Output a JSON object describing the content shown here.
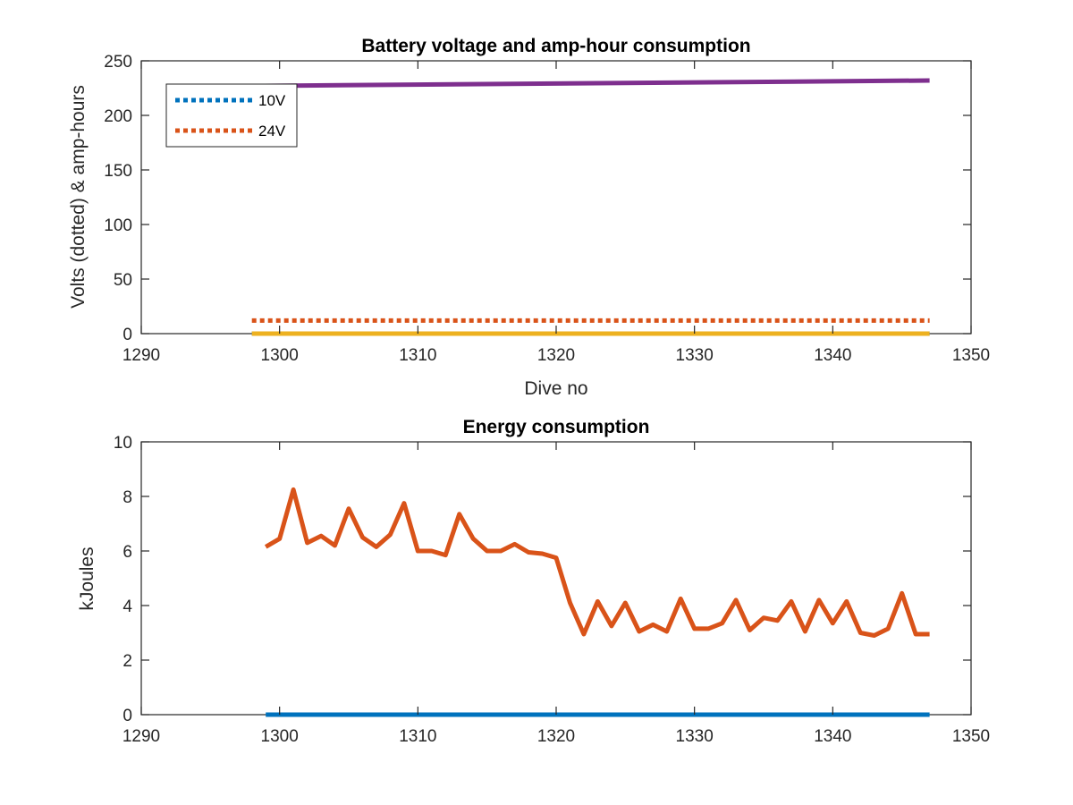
{
  "chart_data": [
    {
      "type": "line",
      "title": "Battery voltage and amp-hour consumption",
      "xlabel": "Dive no",
      "ylabel": "Volts (dotted) & amp-hours",
      "xlim": [
        1290,
        1350
      ],
      "ylim": [
        0,
        250
      ],
      "xticks": [
        1290,
        1300,
        1310,
        1320,
        1330,
        1340,
        1350
      ],
      "yticks": [
        0,
        50,
        100,
        150,
        200,
        250
      ],
      "grid": false,
      "legend_position": "top-left",
      "legend": [
        "10V",
        "24V"
      ],
      "series": [
        {
          "name": "10V",
          "style": "dotted",
          "color": "#0072BD",
          "x": [
            1298,
            1347
          ],
          "values": [
            0,
            0
          ]
        },
        {
          "name": "24V",
          "style": "dotted",
          "color": "#D95319",
          "x": [
            1298,
            1347
          ],
          "values": [
            12,
            12
          ]
        },
        {
          "style": "solid",
          "color": "#EDB120",
          "x": [
            1298,
            1347
          ],
          "values": [
            0,
            0
          ]
        },
        {
          "style": "solid",
          "color": "#7E2F8E",
          "x": [
            1298,
            1347
          ],
          "values": [
            227,
            232
          ]
        }
      ]
    },
    {
      "type": "line",
      "title": "Energy consumption",
      "xlabel": "",
      "ylabel": "kJoules",
      "xlim": [
        1290,
        1350
      ],
      "ylim": [
        0,
        10
      ],
      "xticks": [
        1290,
        1300,
        1310,
        1320,
        1330,
        1340,
        1350
      ],
      "yticks": [
        0,
        2,
        4,
        6,
        8,
        10
      ],
      "grid": false,
      "series": [
        {
          "style": "solid",
          "color": "#0072BD",
          "x": [
            1299,
            1347
          ],
          "values": [
            0,
            0
          ]
        },
        {
          "style": "solid",
          "color": "#D95319",
          "x": [
            1299,
            1300,
            1301,
            1302,
            1303,
            1304,
            1305,
            1306,
            1307,
            1308,
            1309,
            1310,
            1311,
            1312,
            1313,
            1314,
            1315,
            1316,
            1317,
            1318,
            1319,
            1320,
            1321,
            1322,
            1323,
            1324,
            1325,
            1326,
            1327,
            1328,
            1329,
            1330,
            1331,
            1332,
            1333,
            1334,
            1335,
            1336,
            1337,
            1338,
            1339,
            1340,
            1341,
            1342,
            1343,
            1344,
            1345,
            1346,
            1347
          ],
          "values": [
            6.15,
            6.45,
            8.25,
            6.3,
            6.55,
            6.2,
            7.55,
            6.5,
            6.15,
            6.6,
            7.75,
            6.0,
            6.0,
            5.85,
            7.35,
            6.45,
            6.0,
            6.0,
            6.25,
            5.95,
            5.9,
            5.75,
            4.1,
            2.95,
            4.15,
            3.25,
            4.1,
            3.05,
            3.3,
            3.05,
            4.25,
            3.15,
            3.15,
            3.35,
            4.2,
            3.1,
            3.55,
            3.45,
            4.15,
            3.05,
            4.2,
            3.35,
            4.15,
            3.0,
            2.9,
            3.15,
            4.45,
            2.95,
            2.95
          ]
        }
      ]
    }
  ]
}
